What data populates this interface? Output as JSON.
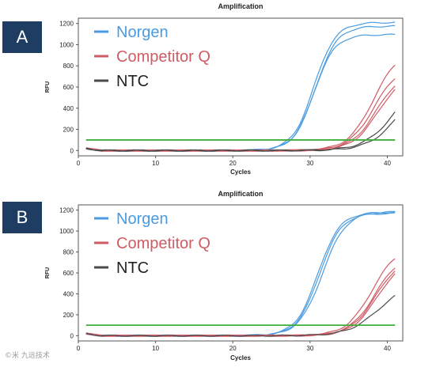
{
  "panels": [
    {
      "label": "A"
    },
    {
      "label": "B"
    }
  ],
  "watermark": "©米 九远技术",
  "colors": {
    "norgen": "#4a9be0",
    "competitor": "#cf5c64",
    "ntc": "#4a4a4a",
    "threshold": "#3fae3a",
    "label_bg": "#1f3d63"
  },
  "chart_data": [
    {
      "type": "line",
      "title": "Amplification",
      "xlabel": "Cycles",
      "ylabel": "RFU",
      "xlim": [
        0,
        42
      ],
      "ylim": [
        -50,
        1250
      ],
      "xticks": [
        0,
        10,
        20,
        30,
        40
      ],
      "yticks": [
        0,
        200,
        400,
        600,
        800,
        1000,
        1200
      ],
      "grid": false,
      "legend_position": "top-left",
      "threshold": 100,
      "legend": [
        {
          "name": "Norgen",
          "group": "norgen"
        },
        {
          "name": "Competitor Q",
          "group": "competitor"
        },
        {
          "name": "NTC",
          "group": "ntc"
        }
      ],
      "series": [
        {
          "group": "norgen",
          "plateau": 1210,
          "midpoint": 30.5,
          "slope": 0.72
        },
        {
          "group": "norgen",
          "plateau": 1175,
          "midpoint": 30.7,
          "slope": 0.72
        },
        {
          "group": "norgen",
          "plateau": 1095,
          "midpoint": 30.5,
          "slope": 0.74
        },
        {
          "group": "competitor",
          "plateau": 960,
          "midpoint": 38.2,
          "slope": 0.6
        },
        {
          "group": "competitor",
          "plateau": 820,
          "midpoint": 38.3,
          "slope": 0.6
        },
        {
          "group": "competitor",
          "plateau": 760,
          "midpoint": 38.6,
          "slope": 0.6
        },
        {
          "group": "competitor",
          "plateau": 730,
          "midpoint": 38.8,
          "slope": 0.6
        },
        {
          "group": "ntc",
          "plateau": 720,
          "midpoint": 41.0,
          "slope": 0.5
        },
        {
          "group": "ntc",
          "plateau": 700,
          "midpoint": 41.7,
          "slope": 0.5
        }
      ]
    },
    {
      "type": "line",
      "title": "Amplification",
      "xlabel": "Cycles",
      "ylabel": "RFU",
      "xlim": [
        0,
        42
      ],
      "ylim": [
        -50,
        1250
      ],
      "xticks": [
        0,
        10,
        20,
        30,
        40
      ],
      "yticks": [
        0,
        200,
        400,
        600,
        800,
        1000,
        1200
      ],
      "grid": false,
      "legend_position": "top-left",
      "threshold": 100,
      "legend": [
        {
          "name": "Norgen",
          "group": "norgen"
        },
        {
          "name": "Competitor Q",
          "group": "competitor"
        },
        {
          "name": "NTC",
          "group": "ntc"
        }
      ],
      "series": [
        {
          "group": "norgen",
          "plateau": 1180,
          "midpoint": 31.0,
          "slope": 0.7
        },
        {
          "group": "norgen",
          "plateau": 1170,
          "midpoint": 31.2,
          "slope": 0.7
        },
        {
          "group": "norgen",
          "plateau": 1185,
          "midpoint": 31.6,
          "slope": 0.66
        },
        {
          "group": "competitor",
          "plateau": 860,
          "midpoint": 38.0,
          "slope": 0.6
        },
        {
          "group": "competitor",
          "plateau": 790,
          "midpoint": 38.4,
          "slope": 0.6
        },
        {
          "group": "competitor",
          "plateau": 760,
          "midpoint": 38.5,
          "slope": 0.6
        },
        {
          "group": "competitor",
          "plateau": 740,
          "midpoint": 38.7,
          "slope": 0.6
        },
        {
          "group": "ntc",
          "plateau": 520,
          "midpoint": 39.0,
          "slope": 0.5
        }
      ]
    }
  ]
}
